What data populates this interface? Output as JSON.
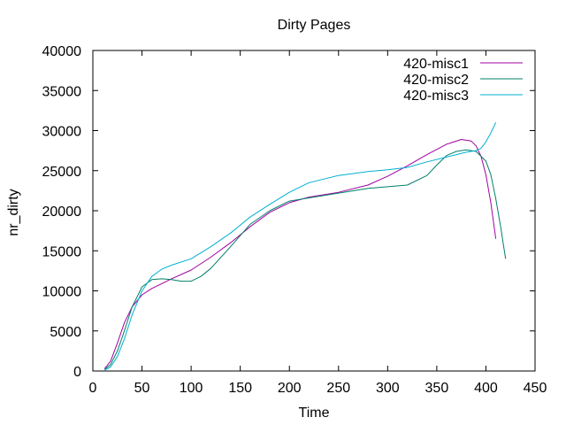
{
  "chart_data": {
    "type": "line",
    "title": "Dirty Pages",
    "xlabel": "Time",
    "ylabel": "nr_dirty",
    "xlim": [
      0,
      450
    ],
    "ylim": [
      0,
      40000
    ],
    "x_ticks": [
      0,
      50,
      100,
      150,
      200,
      250,
      300,
      350,
      400,
      450
    ],
    "y_ticks": [
      0,
      5000,
      10000,
      15000,
      20000,
      25000,
      30000,
      35000,
      40000
    ],
    "grid": false,
    "legend_position": "top-right",
    "series": [
      {
        "name": "420-misc1",
        "color": "#a000a0",
        "x": [
          12,
          18,
          25,
          32,
          40,
          50,
          60,
          70,
          80,
          100,
          120,
          140,
          160,
          180,
          200,
          220,
          250,
          280,
          300,
          320,
          340,
          360,
          375,
          385,
          390,
          395,
          400,
          405,
          410
        ],
        "y": [
          300,
          1200,
          3500,
          6000,
          8000,
          9500,
          10300,
          10900,
          11500,
          12600,
          14200,
          16000,
          18000,
          19800,
          21000,
          21700,
          22300,
          23200,
          24300,
          25600,
          27000,
          28300,
          28900,
          28700,
          28100,
          26800,
          24500,
          21000,
          16500
        ]
      },
      {
        "name": "420-misc2",
        "color": "#00806a",
        "x": [
          12,
          18,
          25,
          32,
          40,
          50,
          60,
          70,
          80,
          90,
          100,
          110,
          120,
          140,
          160,
          180,
          200,
          220,
          250,
          280,
          300,
          320,
          340,
          350,
          360,
          370,
          380,
          390,
          400,
          405,
          410,
          415,
          420
        ],
        "y": [
          200,
          800,
          2500,
          5000,
          8000,
          10500,
          11400,
          11500,
          11400,
          11200,
          11200,
          11800,
          12800,
          15500,
          18300,
          20000,
          21200,
          21600,
          22200,
          22800,
          23000,
          23200,
          24400,
          25700,
          26900,
          27400,
          27600,
          27400,
          26200,
          24500,
          21500,
          18000,
          14000
        ]
      },
      {
        "name": "420-misc3",
        "color": "#00b0d0",
        "x": [
          12,
          18,
          25,
          32,
          40,
          50,
          60,
          70,
          80,
          100,
          120,
          140,
          160,
          180,
          200,
          220,
          250,
          280,
          300,
          320,
          340,
          360,
          380,
          390,
          395,
          400,
          405,
          410
        ],
        "y": [
          100,
          500,
          1800,
          4000,
          7000,
          10000,
          11800,
          12700,
          13200,
          14000,
          15500,
          17200,
          19200,
          20800,
          22300,
          23500,
          24400,
          24900,
          25100,
          25400,
          26100,
          26700,
          27300,
          27500,
          27800,
          28600,
          29700,
          31000
        ]
      }
    ]
  }
}
